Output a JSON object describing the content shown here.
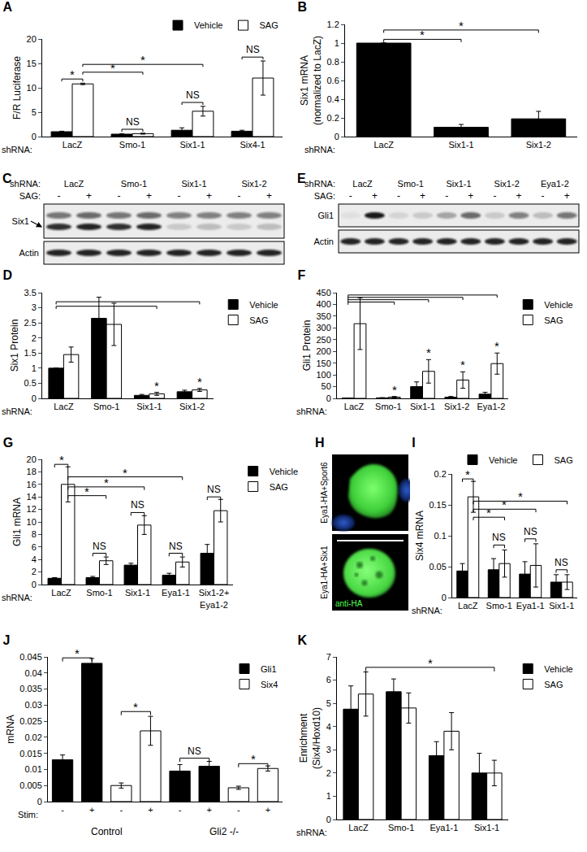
{
  "chart_data": [
    {
      "type": "bar",
      "title": "A",
      "ylabel": "F/R Luciferase",
      "x_label": "shRNA:",
      "categories": [
        "LacZ",
        "Smo-1",
        "Six1-1",
        "Six4-1"
      ],
      "series": [
        {
          "name": "Vehicle",
          "color": "#000000",
          "values": [
            1,
            0.5,
            1.3,
            1.1
          ],
          "errors": [
            0.1,
            0.1,
            0.5,
            0.2
          ]
        },
        {
          "name": "SAG",
          "color": "#ffffff",
          "values": [
            10.8,
            0.6,
            5.2,
            12
          ],
          "errors": [
            0.15,
            0.1,
            1.0,
            3.5
          ]
        }
      ],
      "ylim": [
        0,
        20
      ],
      "yticks": [
        0,
        5,
        10,
        15,
        20
      ],
      "grid": false,
      "legend": "top",
      "annotations": [
        {
          "text": "*",
          "from": [
            0,
            0
          ],
          "to": [
            0,
            1
          ],
          "y": 11.8
        },
        {
          "text": "*",
          "from": [
            0,
            1
          ],
          "to": [
            1,
            1
          ],
          "y": 13.2
        },
        {
          "text": "*",
          "from": [
            0,
            1
          ],
          "to": [
            2,
            1
          ],
          "y": 14.8
        },
        {
          "text": "NS",
          "from": [
            1,
            0
          ],
          "to": [
            1,
            1
          ],
          "y": 1.5
        },
        {
          "text": "NS",
          "from": [
            2,
            0
          ],
          "to": [
            2,
            1
          ],
          "y": 7
        },
        {
          "text": "NS",
          "from": [
            3,
            0
          ],
          "to": [
            3,
            1
          ],
          "y": 16.3
        }
      ]
    },
    {
      "type": "bar",
      "title": "B",
      "ylabel": "Six1 mRNA\n(normalized to LacZ)",
      "x_label": "shRNA:",
      "categories": [
        "LacZ",
        "Six1-1",
        "Six1-2"
      ],
      "series": [
        {
          "color": "#000000",
          "values": [
            1,
            0.1,
            0.19
          ],
          "errors": [
            0,
            0.03,
            0.08
          ]
        }
      ],
      "ylim": [
        0,
        1.2
      ],
      "yticks": [
        0,
        0.2,
        0.4,
        0.6,
        0.8,
        1,
        1.2
      ],
      "grid": false,
      "annotations": [
        {
          "text": "*",
          "from": [
            0,
            0
          ],
          "to": [
            1,
            0
          ],
          "y": 1.04
        },
        {
          "text": "*",
          "from": [
            0,
            0
          ],
          "to": [
            2,
            0
          ],
          "y": 1.14
        }
      ]
    },
    {
      "type": "bar",
      "title": "D",
      "ylabel": "Six1 Protein",
      "x_label": "shRNA:",
      "categories": [
        "LacZ",
        "Smo-1",
        "Six1-1",
        "Six1-2"
      ],
      "series": [
        {
          "name": "Vehicle",
          "color": "#000000",
          "values": [
            1,
            2.65,
            0.1,
            0.22
          ],
          "errors": [
            0,
            0.7,
            0.03,
            0.05
          ]
        },
        {
          "name": "SAG",
          "color": "#ffffff",
          "values": [
            1.45,
            2.45,
            0.15,
            0.28
          ],
          "errors": [
            0.25,
            0.7,
            0.05,
            0.05
          ]
        }
      ],
      "ylim": [
        0,
        3.5
      ],
      "yticks": [
        0,
        0.5,
        1,
        1.5,
        2,
        2.5,
        3,
        3.5
      ],
      "grid": false,
      "legend": "right",
      "annotations": [
        {
          "from": [
            0,
            0
          ],
          "to": [
            2,
            1
          ],
          "y": 3.05
        },
        {
          "from": [
            0,
            0
          ],
          "to": [
            3,
            1
          ],
          "y": 3.2
        },
        {
          "text": "*",
          "at": [
            2,
            1
          ],
          "y": 0.22
        },
        {
          "text": "*",
          "at": [
            3,
            1
          ],
          "y": 0.35
        }
      ]
    },
    {
      "type": "bar",
      "title": "F",
      "ylabel": "Gli1 Protein",
      "x_label": "shRNA:",
      "categories": [
        "LacZ",
        "Smo-1",
        "Six1-1",
        "Six1-2",
        "Eya1-2"
      ],
      "series": [
        {
          "name": "Vehicle",
          "color": "#000000",
          "values": [
            1,
            2,
            50,
            5,
            18
          ],
          "errors": [
            0.5,
            1,
            20,
            3,
            8
          ]
        },
        {
          "name": "SAG",
          "color": "#ffffff",
          "values": [
            318,
            5,
            115,
            78,
            148
          ],
          "errors": [
            110,
            3,
            50,
            35,
            45
          ]
        }
      ],
      "ylim": [
        0,
        450
      ],
      "yticks": [
        0,
        50,
        100,
        150,
        200,
        250,
        300,
        350,
        400,
        450
      ],
      "grid": false,
      "legend": "right",
      "annotations": [
        {
          "from": [
            0,
            0
          ],
          "to": [
            1,
            1
          ],
          "y": 410
        },
        {
          "from": [
            0,
            0
          ],
          "to": [
            2,
            1
          ],
          "y": 420
        },
        {
          "from": [
            0,
            0
          ],
          "to": [
            3,
            1
          ],
          "y": 430
        },
        {
          "from": [
            0,
            0
          ],
          "to": [
            4,
            1
          ],
          "y": 440
        },
        {
          "text": "*",
          "at": [
            1,
            1
          ],
          "y": 12
        },
        {
          "text": "*",
          "at": [
            2,
            1
          ],
          "y": 170
        },
        {
          "text": "*",
          "at": [
            3,
            1
          ],
          "y": 118
        },
        {
          "text": "*",
          "at": [
            4,
            1
          ],
          "y": 198
        }
      ]
    },
    {
      "type": "bar",
      "title": "G",
      "ylabel": "Gli1 mRNA",
      "x_label": "shRNA:",
      "categories": [
        "LacZ",
        "Smo-1",
        "Six1-1",
        "Eya1-1",
        "Six1-2+\nEya1-2"
      ],
      "series": [
        {
          "name": "Vehicle",
          "color": "#000000",
          "values": [
            1,
            1.1,
            3.1,
            1.5,
            5
          ],
          "errors": [
            0.1,
            0.2,
            0.3,
            0.3,
            1.4
          ]
        },
        {
          "name": "SAG",
          "color": "#ffffff",
          "values": [
            16,
            3.8,
            9.5,
            3.6,
            11.8
          ],
          "errors": [
            2.8,
            0.6,
            1.5,
            0.8,
            1.8
          ]
        }
      ],
      "ylim": [
        0,
        20
      ],
      "yticks": [
        0,
        2,
        4,
        6,
        8,
        10,
        12,
        14,
        16,
        18,
        20
      ],
      "grid": false,
      "legend": "right",
      "annotations": [
        {
          "text": "*",
          "from": [
            0,
            0
          ],
          "to": [
            0,
            1
          ],
          "y": 19.2
        },
        {
          "text": "*",
          "from": [
            0,
            1
          ],
          "to": [
            1,
            1
          ],
          "y": 14.2
        },
        {
          "text": "*",
          "from": [
            0,
            1
          ],
          "to": [
            2,
            1
          ],
          "y": 15.6
        },
        {
          "text": "*",
          "from": [
            0,
            1
          ],
          "to": [
            3,
            1
          ],
          "y": 17.2
        },
        {
          "text": "NS",
          "from": [
            1,
            0
          ],
          "to": [
            1,
            1
          ],
          "y": 5
        },
        {
          "text": "NS",
          "from": [
            2,
            0
          ],
          "to": [
            2,
            1
          ],
          "y": 11.5
        },
        {
          "text": "NS",
          "from": [
            3,
            0
          ],
          "to": [
            3,
            1
          ],
          "y": 5
        },
        {
          "text": "NS",
          "from": [
            4,
            0
          ],
          "to": [
            4,
            1
          ],
          "y": 14
        }
      ]
    },
    {
      "type": "bar",
      "title": "I",
      "ylabel": "Six4 mRNA",
      "x_label": "shRNA:",
      "categories": [
        "LacZ",
        "Smo-1",
        "Eya1-1",
        "Six1-1"
      ],
      "series": [
        {
          "name": "Vehicle",
          "color": "#000000",
          "values": [
            0.043,
            0.045,
            0.038,
            0.025
          ],
          "errors": [
            0.012,
            0.018,
            0.02,
            0.012
          ]
        },
        {
          "name": "SAG",
          "color": "#ffffff",
          "values": [
            0.163,
            0.055,
            0.052,
            0.025
          ],
          "errors": [
            0.025,
            0.022,
            0.035,
            0.012
          ]
        }
      ],
      "ylim": [
        0,
        0.2
      ],
      "yticks": [
        0,
        0.05,
        0.1,
        0.15,
        0.2
      ],
      "grid": false,
      "legend": "top",
      "annotations": [
        {
          "text": "*",
          "from": [
            0,
            0
          ],
          "to": [
            0,
            1
          ],
          "y": 0.192
        },
        {
          "text": "*",
          "from": [
            0,
            1
          ],
          "to": [
            1,
            1
          ],
          "y": 0.13
        },
        {
          "text": "*",
          "from": [
            0,
            1
          ],
          "to": [
            2,
            1
          ],
          "y": 0.143
        },
        {
          "text": "*",
          "from": [
            0,
            1
          ],
          "to": [
            3,
            1
          ],
          "y": 0.156
        },
        {
          "text": "NS",
          "from": [
            1,
            0
          ],
          "to": [
            1,
            1
          ],
          "y": 0.085
        },
        {
          "text": "NS",
          "from": [
            2,
            0
          ],
          "to": [
            2,
            1
          ],
          "y": 0.095
        },
        {
          "text": "NS",
          "from": [
            3,
            0
          ],
          "to": [
            3,
            1
          ],
          "y": 0.045
        }
      ]
    },
    {
      "type": "bar",
      "title": "J",
      "ylabel": "mRNA",
      "x_label": "Stim:",
      "categories": [
        "-",
        "+",
        "-",
        "+",
        "-",
        "+",
        "-",
        "+"
      ],
      "groups": [
        {
          "label": "Control",
          "from": 0,
          "to": 3
        },
        {
          "label": "Gli2 -/-",
          "from": 4,
          "to": 7
        }
      ],
      "series": [
        {
          "name": "Gli1",
          "color": "#000000",
          "values": [
            0.013,
            0.043,
            null,
            null,
            0.0095,
            0.011,
            null,
            null
          ],
          "errors": [
            0.0015,
            0.0015,
            null,
            null,
            0.002,
            0.0015,
            null,
            null
          ]
        },
        {
          "name": "Six4",
          "color": "#ffffff",
          "values": [
            null,
            null,
            0.005,
            0.022,
            null,
            null,
            0.0043,
            0.0103
          ],
          "errors": [
            null,
            null,
            0.0008,
            0.0045,
            null,
            null,
            0.0005,
            0.0008
          ]
        }
      ],
      "ylim": [
        0,
        0.045
      ],
      "yticks": [
        0,
        0.005,
        0.01,
        0.015,
        0.02,
        0.025,
        0.03,
        0.035,
        0.04,
        0.045
      ],
      "grid": false,
      "legend": "top-right",
      "annotations": [
        {
          "text": "*",
          "from": [
            0,
            0
          ],
          "to": [
            1,
            0
          ],
          "y": 0.0447
        },
        {
          "text": "*",
          "from": [
            2,
            1
          ],
          "to": [
            3,
            1
          ],
          "y": 0.028
        },
        {
          "text": "NS",
          "from": [
            4,
            0
          ],
          "to": [
            5,
            0
          ],
          "y": 0.0135
        },
        {
          "text": "*",
          "from": [
            6,
            1
          ],
          "to": [
            7,
            1
          ],
          "y": 0.0118
        }
      ]
    },
    {
      "type": "bar",
      "title": "K",
      "ylabel": "Enrichment\n(Six4/Hoxd10)",
      "x_label": "shRNA:",
      "categories": [
        "LacZ",
        "Smo-1",
        "Eya1-1",
        "Six1-1"
      ],
      "series": [
        {
          "name": "Vehicle",
          "color": "#000000",
          "values": [
            4.75,
            5.5,
            2.75,
            2.0
          ],
          "errors": [
            1.0,
            0.55,
            0.6,
            0.85
          ]
        },
        {
          "name": "SAG",
          "color": "#ffffff",
          "values": [
            5.4,
            4.8,
            3.8,
            2.0
          ],
          "errors": [
            0.95,
            0.65,
            0.8,
            0.55
          ]
        }
      ],
      "ylim": [
        0,
        7
      ],
      "yticks": [
        0,
        1,
        2,
        3,
        4,
        5,
        6,
        7
      ],
      "grid": false,
      "legend": "right",
      "annotations": [
        {
          "text": "*",
          "from": [
            0,
            1
          ],
          "to": [
            3,
            1
          ],
          "y": 6.55
        }
      ]
    }
  ],
  "blots": [
    {
      "title": "C",
      "x_label": "shRNA:",
      "lanes": [
        "LacZ",
        "Smo-1",
        "Six1-1",
        "Six1-2"
      ],
      "condition": "SAG:",
      "states": [
        "-",
        "+"
      ],
      "rows": [
        {
          "label": "Six1",
          "marker": "arrow",
          "bands": [
            [
              0.55,
              0.6,
              0.55,
              0.6,
              0.5,
              0.5,
              0.5,
              0.5
            ],
            [
              0.85,
              0.9,
              0.85,
              0.9,
              0.15,
              0.2,
              0.15,
              0.2
            ]
          ]
        },
        {
          "label": "Actin",
          "bands": [
            [
              0.9,
              0.9,
              0.9,
              0.9,
              0.9,
              0.9,
              0.9,
              0.9
            ]
          ]
        }
      ]
    },
    {
      "title": "E",
      "x_label": "shRNA:",
      "lanes": [
        "LacZ",
        "Smo-1",
        "Six1-1",
        "Six1-2",
        "Eya1-2"
      ],
      "condition": "SAG:",
      "states": [
        "-",
        "+"
      ],
      "rows": [
        {
          "label": "Gli1",
          "bands": [
            [
              0.05,
              0.95,
              0.1,
              0.15,
              0.3,
              0.6,
              0.15,
              0.5,
              0.2,
              0.55
            ]
          ]
        },
        {
          "label": "Actin",
          "bands": [
            [
              0.9,
              0.9,
              0.9,
              0.9,
              0.9,
              0.9,
              0.9,
              0.9,
              0.9,
              0.9
            ]
          ]
        }
      ]
    }
  ],
  "image": {
    "title": "H",
    "panels": [
      "Eya1-HA+Sport6",
      "Eya1-HA+Six1"
    ],
    "stain": "anti-HA"
  }
}
